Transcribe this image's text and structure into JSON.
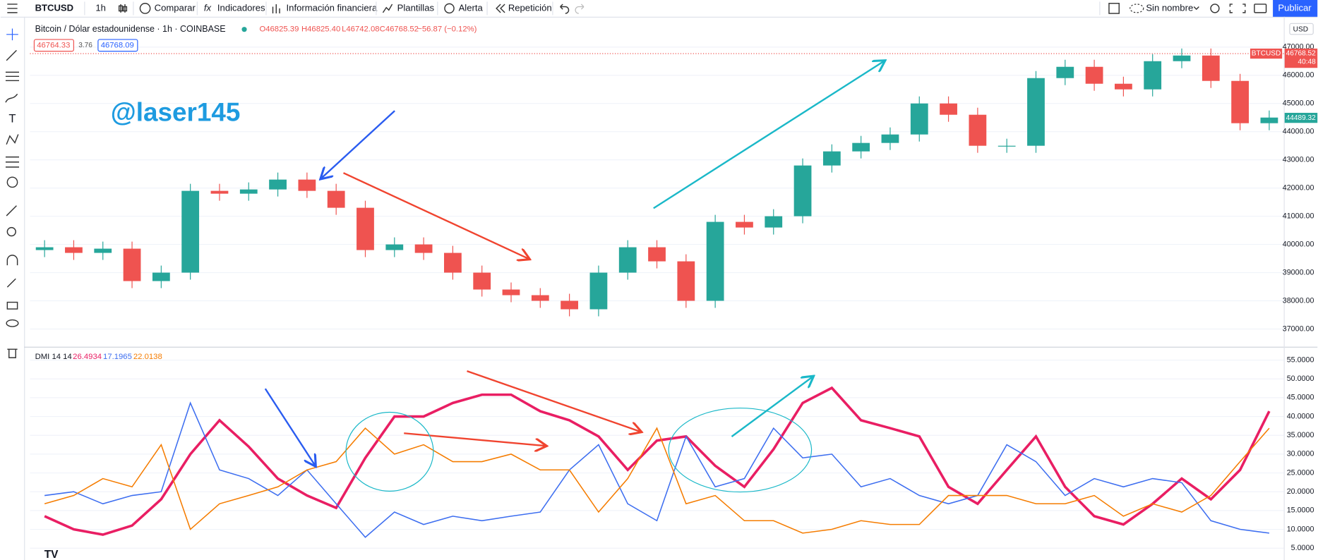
{
  "toolbar": {
    "symbol": "BTCUSD",
    "interval": "1h",
    "buttons": [
      "Comparar",
      "Indicadores",
      "Información financiera",
      "Plantillas",
      "Alerta",
      "Repetición"
    ],
    "layout_name": "Sin nombre",
    "publish": "Publicar"
  },
  "watermark": "@laser145",
  "chart_data": [
    {
      "type": "candlestick",
      "title": "Bitcoin / Dólar estadounidense · 1h · COINBASE",
      "readout": [
        "O46825.39",
        "H46825.40",
        "L46742.08",
        "C46768.52",
        "−56.87 (−0.12%)"
      ],
      "bid": 46764.33,
      "spread": 3.76,
      "ask": 46768.09,
      "axis_currency": "USD",
      "symbol_tag": "BTCUSD",
      "last_price": 46768.52,
      "countdown": "40:48",
      "marker_price": 44489.32,
      "up_color": "#26a69a",
      "down_color": "#ef5350",
      "open": [
        39800,
        39900,
        39700,
        39850,
        38700,
        39000,
        41900,
        41800,
        41950,
        42300,
        41900,
        41300,
        39800,
        40000,
        39700,
        39000,
        38400,
        38200,
        38000,
        37700,
        39000,
        39900,
        39400,
        38000,
        40800,
        40600,
        41000,
        42800,
        43300,
        43600,
        43900,
        45000,
        44600,
        43500,
        43500,
        45900,
        46300,
        45700,
        45500,
        46500,
        46700,
        45800,
        44300
      ],
      "high": [
        40150,
        40150,
        40100,
        40100,
        39250,
        42150,
        42150,
        42200,
        42550,
        42550,
        42150,
        41550,
        40250,
        40250,
        39950,
        39250,
        38650,
        38450,
        38250,
        39250,
        40150,
        40150,
        39650,
        41050,
        41050,
        41250,
        43050,
        43550,
        43850,
        44150,
        45250,
        45250,
        44850,
        43750,
        46150,
        46550,
        46550,
        45950,
        46750,
        46950,
        46950,
        46050,
        44750
      ],
      "low": [
        39550,
        39450,
        39450,
        38450,
        38450,
        38750,
        41550,
        41550,
        41700,
        41650,
        41050,
        39550,
        39550,
        39450,
        38750,
        38150,
        37950,
        37750,
        37450,
        37450,
        38750,
        39150,
        37750,
        37750,
        40350,
        40350,
        40750,
        42550,
        43050,
        43350,
        43650,
        44350,
        43250,
        43250,
        43250,
        45650,
        45450,
        45250,
        45250,
        46250,
        45550,
        44050,
        44050
      ],
      "close": [
        39900,
        39700,
        39850,
        38700,
        39000,
        41900,
        41800,
        41950,
        42300,
        41900,
        41300,
        39800,
        40000,
        39700,
        39000,
        38400,
        38200,
        38000,
        37700,
        39000,
        39900,
        39400,
        38000,
        40800,
        40600,
        41000,
        42800,
        43300,
        43600,
        43900,
        45000,
        44600,
        43500,
        43500,
        45900,
        46300,
        45700,
        45500,
        46500,
        46700,
        45800,
        44300,
        44500
      ],
      "ylim": [
        36460,
        47330
      ],
      "yticks": [
        {
          "value": 37000,
          "label": "37000.00"
        },
        {
          "value": 38000,
          "label": "38000.00"
        },
        {
          "value": 39000,
          "label": "39000.00"
        },
        {
          "value": 40000,
          "label": "40000.00"
        },
        {
          "value": 41000,
          "label": "41000.00"
        },
        {
          "value": 42000,
          "label": "42000.00"
        },
        {
          "value": 43000,
          "label": "43000.00"
        },
        {
          "value": 44000,
          "label": "44000.00"
        },
        {
          "value": 45000,
          "label": "45000.00"
        },
        {
          "value": 46000,
          "label": "46000.00"
        },
        {
          "value": 47000,
          "label": "47000.00"
        }
      ],
      "grid": true
    },
    {
      "type": "line",
      "title": "DMI 14 14",
      "series": [
        {
          "readout": "26.4934",
          "color": "#e91e63",
          "values": [
            13.5,
            10,
            8.6,
            11,
            18,
            30,
            39,
            32,
            23.5,
            19,
            15.7,
            29,
            40,
            40,
            43.6,
            45.8,
            45.8,
            41.4,
            39,
            34.7,
            25.8,
            33.6,
            34.7,
            26.9,
            21.3,
            31.3,
            43.6,
            47.6,
            39,
            36.9,
            34.7,
            21.3,
            16.8,
            25.8,
            34.7,
            21.3,
            13.5,
            11.3,
            16.8,
            23.5,
            18,
            25.8,
            41.4
          ]
        },
        {
          "readout": "17.1965",
          "color": "#3d6ef0",
          "values": [
            19,
            20,
            16.8,
            19,
            20,
            43.6,
            25.8,
            23.5,
            19,
            25.8,
            16.8,
            7.9,
            14.6,
            11.3,
            13.5,
            12.3,
            13.5,
            14.6,
            25.8,
            32.5,
            16.8,
            12.3,
            34.7,
            21.3,
            23.5,
            36.9,
            29,
            30,
            21.3,
            23.5,
            19,
            16.8,
            19,
            32.5,
            28,
            19,
            23.5,
            21.3,
            23.5,
            22.4,
            12.3,
            10,
            9
          ]
        },
        {
          "readout": "22.0138",
          "color": "#f57c00",
          "values": [
            16.8,
            19,
            23.5,
            21.3,
            32.5,
            10,
            16.8,
            19,
            21.3,
            25.8,
            28,
            36.9,
            30,
            32.5,
            28,
            28,
            30,
            25.8,
            25.8,
            14.6,
            23.5,
            36.9,
            16.8,
            19,
            12.3,
            12.3,
            9,
            10,
            12.3,
            11.3,
            11.3,
            19,
            19,
            19,
            16.8,
            16.8,
            19,
            13.5,
            16.8,
            14.6,
            19,
            28,
            36.9
          ]
        }
      ],
      "ylim": [
        2.3,
        58.1
      ],
      "yticks": [
        {
          "value": 5,
          "label": "5.0000"
        },
        {
          "value": 10,
          "label": "10.0000"
        },
        {
          "value": 15,
          "label": "15.0000"
        },
        {
          "value": 20,
          "label": "20.0000"
        },
        {
          "value": 25,
          "label": "25.0000"
        },
        {
          "value": 30,
          "label": "30.0000"
        },
        {
          "value": 35,
          "label": "35.0000"
        },
        {
          "value": 40,
          "label": "40.0000"
        },
        {
          "value": 45,
          "label": "45.0000"
        },
        {
          "value": 50,
          "label": "50.0000"
        },
        {
          "value": 55,
          "label": "55.0000"
        }
      ],
      "grid": true
    }
  ]
}
